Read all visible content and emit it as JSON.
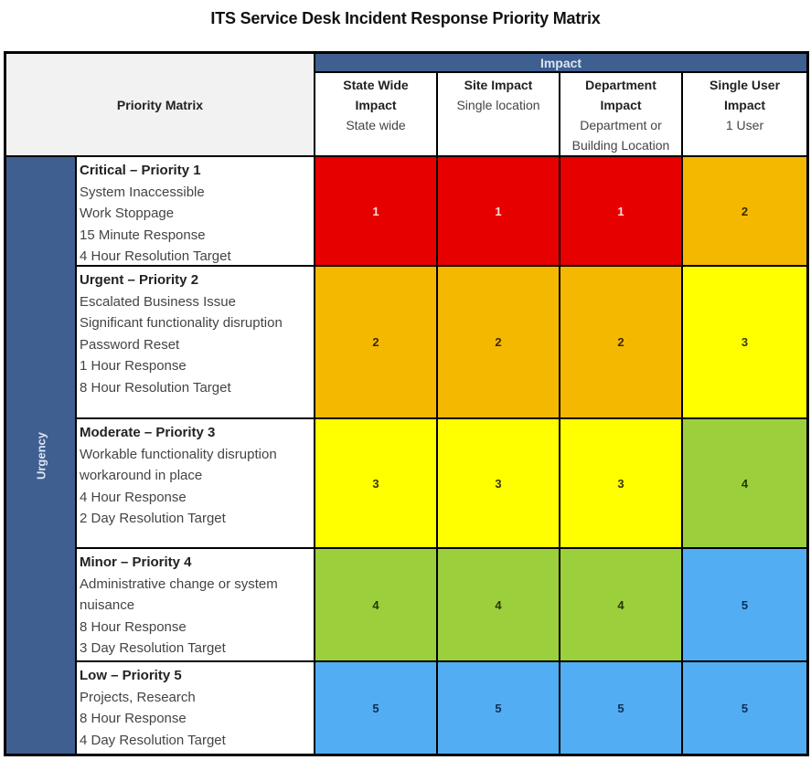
{
  "title": "ITS Service Desk Incident Response Priority Matrix",
  "matrix": {
    "corner_label": "Priority Matrix",
    "impact_label": "Impact",
    "urgency_label": "Urgency",
    "columns": [
      {
        "heading_line1": "State Wide",
        "heading_line2": "Impact",
        "desc_line1": "State wide",
        "desc_line2": ""
      },
      {
        "heading_line1": "Site Impact",
        "heading_line2": "",
        "desc_line1": "Single location",
        "desc_line2": ""
      },
      {
        "heading_line1": "Department",
        "heading_line2": "Impact",
        "desc_line1": "Department or",
        "desc_line2": "Building Location"
      },
      {
        "heading_line1": "Single User",
        "heading_line2": "Impact",
        "desc_line1": "1 User",
        "desc_line2": ""
      }
    ],
    "rows": [
      {
        "heading": "Critical – Priority 1",
        "items": [
          "System Inaccessible",
          "Work Stoppage",
          "15 Minute Response",
          "4 Hour Resolution Target"
        ],
        "cells": [
          "1",
          "1",
          "1",
          "2"
        ]
      },
      {
        "heading": "Urgent – Priority 2",
        "items": [
          "Escalated Business Issue",
          "Significant functionality disruption",
          "Password Reset",
          "1 Hour Response",
          "8 Hour Resolution Target"
        ],
        "cells": [
          "2",
          "2",
          "2",
          "3"
        ]
      },
      {
        "heading": "Moderate – Priority 3",
        "items": [
          "Workable functionality disruption",
          "workaround in place",
          "4 Hour Response",
          "2 Day Resolution Target"
        ],
        "cells": [
          "3",
          "3",
          "3",
          "4"
        ]
      },
      {
        "heading": "Minor – Priority 4",
        "items": [
          "Administrative change or system",
          "nuisance",
          "8 Hour Response",
          "3 Day Resolution Target"
        ],
        "cells": [
          "4",
          "4",
          "4",
          "5"
        ]
      },
      {
        "heading": "Low – Priority 5",
        "items": [
          "Projects, Research",
          "8 Hour Response",
          "4 Day Resolution Target"
        ],
        "cells": [
          "5",
          "5",
          "5",
          "5"
        ]
      }
    ],
    "priority_colors": {
      "1": {
        "bg": "#e60000",
        "fg": "#ffd6d6"
      },
      "2": {
        "bg": "#f5b800",
        "fg": "#3a2a00"
      },
      "3": {
        "bg": "#ffff00",
        "fg": "#3a3a00"
      },
      "4": {
        "bg": "#9ccf3c",
        "fg": "#233a00"
      },
      "5": {
        "bg": "#52adf2",
        "fg": "#0d2f55"
      }
    },
    "header_color": "#3e5f8f"
  }
}
